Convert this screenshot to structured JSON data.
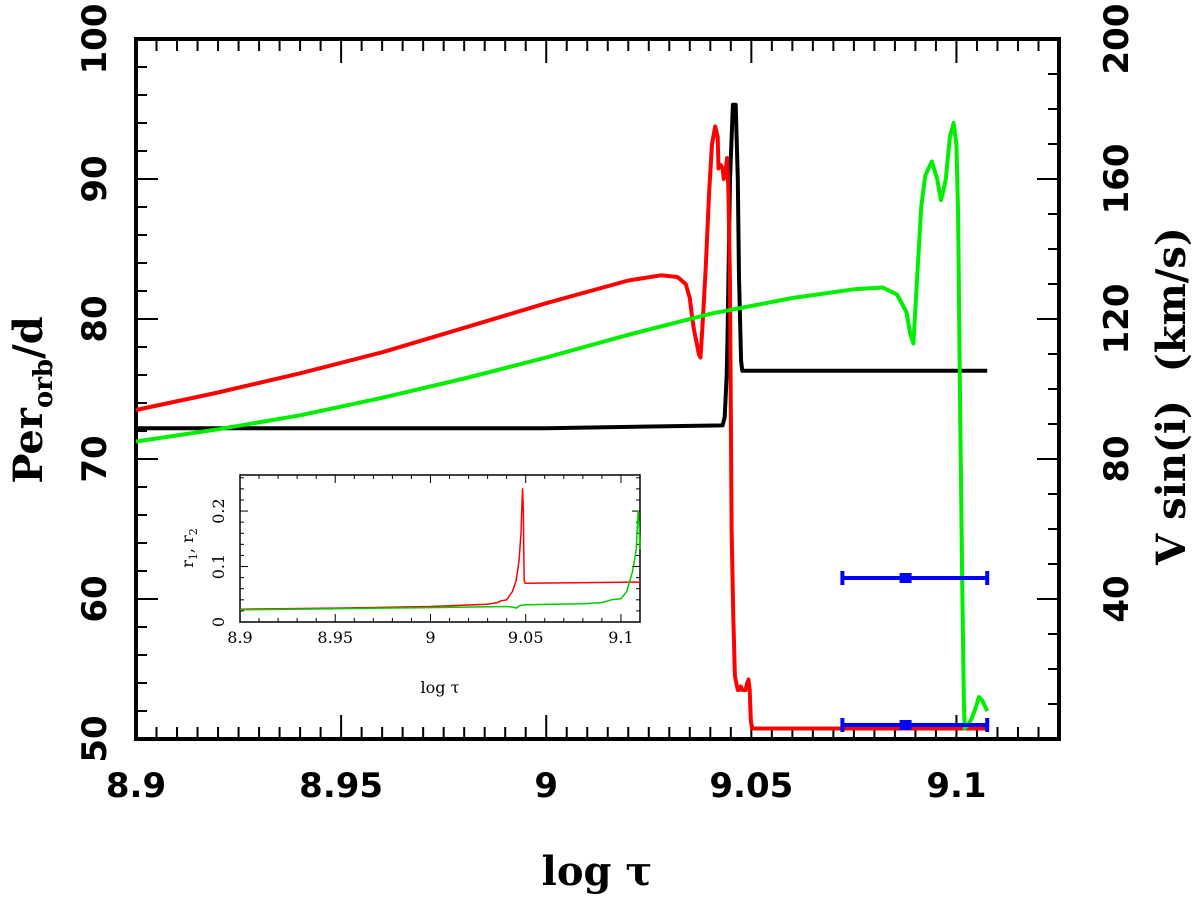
{
  "chart_data": {
    "type": "line",
    "main": {
      "xlabel": "log τ",
      "ylabel_left": "Per",
      "ylabel_left_sub": "orb",
      "ylabel_left_tail": "/d",
      "ylabel_right": "V sin(i)  (km/s)",
      "xlim": [
        8.9,
        9.125
      ],
      "ylim_left": [
        50,
        100
      ],
      "ylim_right": [
        0,
        200
      ],
      "x_ticks": [
        8.9,
        8.95,
        9.0,
        9.05,
        9.1
      ],
      "x_tick_labels": [
        "8.9",
        "8.95",
        "9",
        "9.05",
        "9.1"
      ],
      "y_left_ticks": [
        50,
        60,
        70,
        80,
        90,
        100
      ],
      "y_left_tick_labels": [
        "50",
        "60",
        "70",
        "80",
        "90",
        "100"
      ],
      "y_right_ticks": [
        40,
        80,
        120,
        160,
        200
      ],
      "y_right_tick_labels": [
        "40",
        "80",
        "120",
        "160",
        "200"
      ],
      "series": [
        {
          "name": "black (Per_orb)",
          "color": "#000000",
          "axis": "left",
          "points": [
            [
              8.9,
              72.2
            ],
            [
              9.0,
              72.2
            ],
            [
              9.043,
              72.4
            ],
            [
              9.0435,
              73.0
            ],
            [
              9.044,
              76.0
            ],
            [
              9.0442,
              78.5
            ],
            [
              9.0448,
              90
            ],
            [
              9.0455,
              95.3
            ],
            [
              9.0462,
              95.3
            ],
            [
              9.0467,
              90
            ],
            [
              9.047,
              83
            ],
            [
              9.0475,
              77
            ],
            [
              9.0478,
              76.3
            ],
            [
              9.1075,
              76.3
            ]
          ]
        },
        {
          "name": "red",
          "color": "#ff0000",
          "axis": "right",
          "points": [
            [
              8.9,
              94
            ],
            [
              8.92,
              99
            ],
            [
              8.94,
              104.5
            ],
            [
              8.96,
              110.5
            ],
            [
              8.98,
              117.5
            ],
            [
              9.0,
              124.5
            ],
            [
              9.02,
              131
            ],
            [
              9.028,
              132.5
            ],
            [
              9.032,
              132.0
            ],
            [
              9.034,
              130
            ],
            [
              9.035,
              126
            ],
            [
              9.0355,
              121
            ],
            [
              9.036,
              117
            ],
            [
              9.0367,
              113
            ],
            [
              9.0372,
              110
            ],
            [
              9.0376,
              109
            ],
            [
              9.0381,
              118
            ],
            [
              9.0389,
              135
            ],
            [
              9.0397,
              156
            ],
            [
              9.0404,
              170
            ],
            [
              9.0412,
              175
            ],
            [
              9.0418,
              172
            ],
            [
              9.042,
              163
            ],
            [
              9.0425,
              164
            ],
            [
              9.043,
              163
            ],
            [
              9.0433,
              160
            ],
            [
              9.0437,
              162
            ],
            [
              9.0441,
              166
            ],
            [
              9.0444,
              157
            ],
            [
              9.0448,
              130
            ],
            [
              9.0452,
              60
            ],
            [
              9.0456,
              35
            ],
            [
              9.046,
              18
            ],
            [
              9.0467,
              14
            ],
            [
              9.047,
              14
            ],
            [
              9.0474,
              15
            ],
            [
              9.0478,
              14
            ],
            [
              9.0482,
              14
            ],
            [
              9.0486,
              14
            ],
            [
              9.049,
              16
            ],
            [
              9.0493,
              17
            ],
            [
              9.0496,
              14
            ],
            [
              9.0499,
              5
            ],
            [
              9.0502,
              3
            ],
            [
              9.0508,
              3
            ],
            [
              9.0525,
              3
            ],
            [
              9.1075,
              3
            ]
          ]
        },
        {
          "name": "green",
          "color": "#00ee00",
          "axis": "right",
          "points": [
            [
              8.9,
              85
            ],
            [
              8.92,
              88.5
            ],
            [
              8.94,
              92.5
            ],
            [
              8.96,
              97.5
            ],
            [
              8.98,
              103
            ],
            [
              9.0,
              109
            ],
            [
              9.02,
              115.5
            ],
            [
              9.04,
              121.5
            ],
            [
              9.06,
              126
            ],
            [
              9.075,
              128.5
            ],
            [
              9.082,
              129
            ],
            [
              9.0855,
              127
            ],
            [
              9.0878,
              122
            ],
            [
              9.0887,
              116
            ],
            [
              9.0895,
              113
            ],
            [
              9.0902,
              127
            ],
            [
              9.0914,
              152
            ],
            [
              9.0924,
              161
            ],
            [
              9.094,
              165
            ],
            [
              9.0953,
              160
            ],
            [
              9.0962,
              154
            ],
            [
              9.0967,
              156
            ],
            [
              9.0974,
              160
            ],
            [
              9.0984,
              172
            ],
            [
              9.0993,
              176
            ],
            [
              9.1,
              170
            ],
            [
              9.1004,
              150
            ],
            [
              9.1009,
              95
            ],
            [
              9.1014,
              45
            ],
            [
              9.1018,
              12
            ],
            [
              9.102,
              3
            ],
            [
              9.1028,
              4
            ],
            [
              9.1038,
              6
            ],
            [
              9.1047,
              9
            ],
            [
              9.1055,
              12
            ],
            [
              9.1063,
              11
            ],
            [
              9.1071,
              9
            ],
            [
              9.1075,
              8
            ]
          ]
        }
      ],
      "error_bars": [
        {
          "color": "#0000ff",
          "axis": "right",
          "x": 9.0876,
          "xerr_low": 9.0722,
          "xerr_high": 9.1075,
          "y": 46
        },
        {
          "color": "#0000ff",
          "axis": "right",
          "x": 9.0876,
          "xerr_low": 9.0722,
          "xerr_high": 9.1075,
          "y": 4
        }
      ]
    },
    "inset": {
      "xlabel": "log τ",
      "ylabel": "r1, r2",
      "xlim": [
        8.9,
        9.11
      ],
      "ylim": [
        0,
        0.265
      ],
      "x_ticks": [
        8.9,
        8.95,
        9.0,
        9.05,
        9.1
      ],
      "x_tick_labels": [
        "8.9",
        "8.95",
        "9",
        "9.05",
        "9.1"
      ],
      "y_ticks": [
        0,
        0.1,
        0.2
      ],
      "y_tick_labels": [
        "0",
        "0.1",
        "0.2"
      ],
      "series": [
        {
          "name": "red",
          "color": "#ff0000",
          "points": [
            [
              8.9,
              0.023
            ],
            [
              8.95,
              0.025
            ],
            [
              9.0,
              0.028
            ],
            [
              9.03,
              0.032
            ],
            [
              9.035,
              0.035
            ],
            [
              9.037,
              0.038
            ],
            [
              9.04,
              0.04
            ],
            [
              9.043,
              0.055
            ],
            [
              9.045,
              0.075
            ],
            [
              9.0465,
              0.11
            ],
            [
              9.0475,
              0.16
            ],
            [
              9.0483,
              0.24
            ],
            [
              9.0488,
              0.2
            ],
            [
              9.049,
              0.12
            ],
            [
              9.0492,
              0.075
            ],
            [
              9.0497,
              0.07
            ],
            [
              9.11,
              0.072
            ]
          ]
        },
        {
          "name": "green",
          "color": "#00cc00",
          "points": [
            [
              8.9,
              0.022
            ],
            [
              8.95,
              0.024
            ],
            [
              9.0,
              0.026
            ],
            [
              9.04,
              0.028
            ],
            [
              9.043,
              0.027
            ],
            [
              9.045,
              0.025
            ],
            [
              9.047,
              0.03
            ],
            [
              9.05,
              0.031
            ],
            [
              9.08,
              0.033
            ],
            [
              9.09,
              0.035
            ],
            [
              9.095,
              0.04
            ],
            [
              9.1,
              0.042
            ],
            [
              9.103,
              0.055
            ],
            [
              9.106,
              0.09
            ],
            [
              9.108,
              0.13
            ],
            [
              9.109,
              0.2
            ],
            [
              9.1095,
              0.18
            ],
            [
              9.11,
              0.13
            ]
          ]
        }
      ]
    }
  }
}
